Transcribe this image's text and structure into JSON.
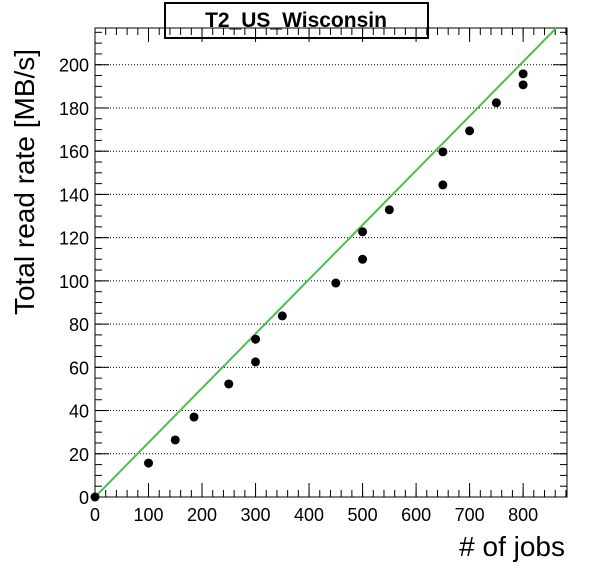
{
  "chart_data": {
    "type": "scatter",
    "title": "T2_US_Wisconsin",
    "x_label": "# of jobs",
    "y_label": "Total read rate [MB/s]",
    "x": [
      0,
      100,
      150,
      185,
      250,
      300,
      300,
      350,
      450,
      500,
      500,
      550,
      650,
      650,
      700,
      750,
      800,
      800
    ],
    "values": [
      0,
      15.7,
      26.4,
      37,
      52.3,
      62.5,
      73,
      83.8,
      99,
      110,
      122.7,
      132.9,
      144.4,
      159.7,
      169.4,
      182.4,
      190.7,
      195.8
    ],
    "color": "#000000",
    "fit_line": {
      "x": [
        0,
        862
      ],
      "values": [
        0,
        217
      ],
      "color": "#4cbf4c"
    },
    "xlim": [
      0,
      882
    ],
    "ylim": [
      0,
      217
    ],
    "xticks": [
      0,
      100,
      200,
      300,
      400,
      500,
      600,
      700,
      800
    ],
    "yticks": [
      0,
      20,
      40,
      60,
      80,
      100,
      120,
      140,
      160,
      180,
      200
    ],
    "grid": true
  }
}
